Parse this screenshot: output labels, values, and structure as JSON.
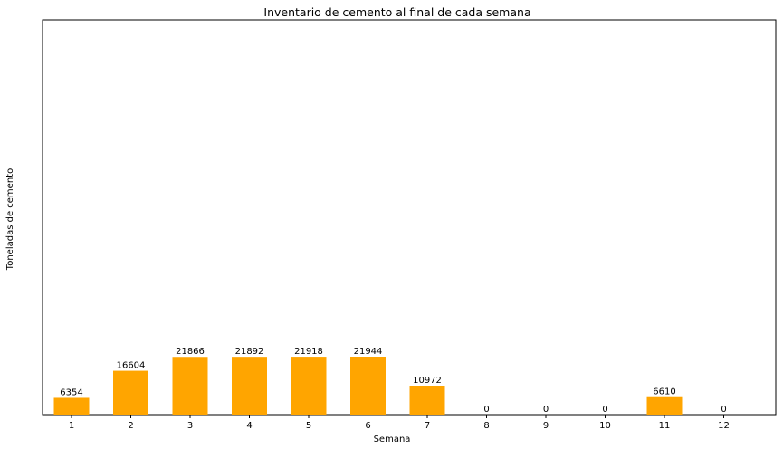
{
  "chart_data": {
    "type": "bar",
    "title": "Inventario de cemento al final de cada semana",
    "xlabel": "Semana",
    "ylabel": "Toneladas de cemento",
    "categories": [
      "1",
      "2",
      "3",
      "4",
      "5",
      "6",
      "7",
      "8",
      "9",
      "10",
      "11",
      "12"
    ],
    "values": [
      6354,
      16604,
      21866,
      21892,
      21918,
      21944,
      10972,
      0,
      0,
      0,
      6610,
      0
    ],
    "ylim": [
      0,
      150000
    ],
    "grid": false,
    "bar_color": "#ffa500",
    "y_ticks_shown": false
  }
}
